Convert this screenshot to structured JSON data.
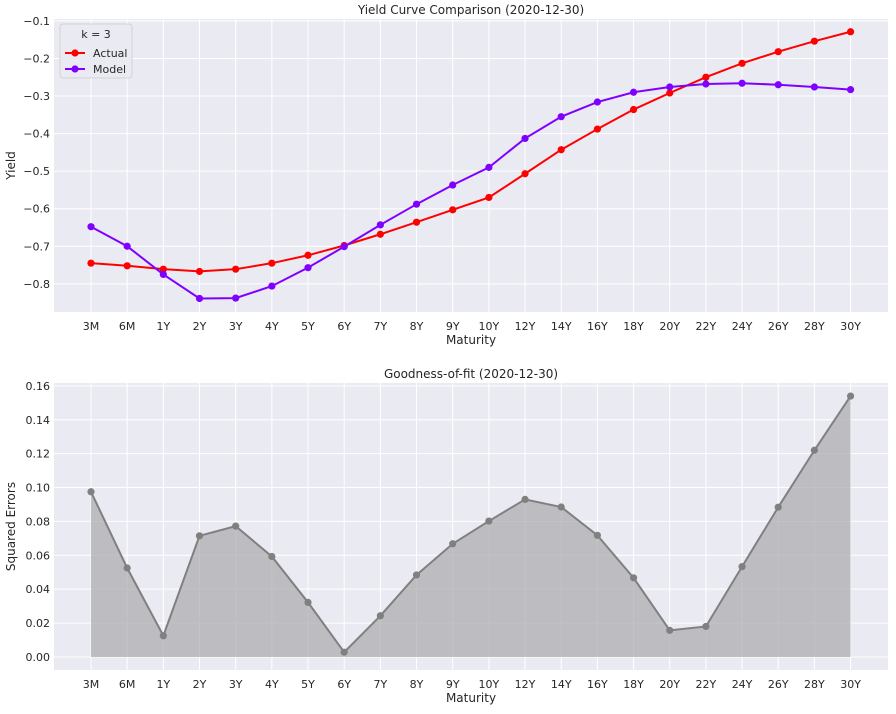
{
  "chart_data": [
    {
      "type": "line",
      "title": "Yield Curve Comparison (2020-12-30)",
      "xlabel": "Maturity",
      "ylabel": "Yield",
      "categories": [
        "3M",
        "6M",
        "1Y",
        "2Y",
        "3Y",
        "4Y",
        "5Y",
        "6Y",
        "7Y",
        "8Y",
        "9Y",
        "10Y",
        "12Y",
        "14Y",
        "16Y",
        "18Y",
        "20Y",
        "22Y",
        "24Y",
        "26Y",
        "28Y",
        "30Y"
      ],
      "ylim": [
        -0.875,
        -0.095
      ],
      "yticks": [
        -0.8,
        -0.7,
        -0.6,
        -0.5,
        -0.4,
        -0.3,
        -0.2,
        -0.1
      ],
      "ytick_labels": [
        "−0.8",
        "−0.7",
        "−0.6",
        "−0.5",
        "−0.4",
        "−0.3",
        "−0.2",
        "−0.1"
      ],
      "grid": true,
      "legend": {
        "title": "k = 3",
        "placement": "top-left"
      },
      "series": [
        {
          "name": "Actual",
          "color": "#ff0000",
          "values": [
            -0.745,
            -0.752,
            -0.761,
            -0.767,
            -0.761,
            -0.745,
            -0.724,
            -0.698,
            -0.668,
            -0.636,
            -0.603,
            -0.57,
            -0.507,
            -0.443,
            -0.388,
            -0.336,
            -0.292,
            -0.25,
            -0.213,
            -0.182,
            -0.154,
            -0.129
          ]
        },
        {
          "name": "Model",
          "color": "#8000ff",
          "values": [
            -0.648,
            -0.7,
            -0.775,
            -0.839,
            -0.838,
            -0.806,
            -0.757,
            -0.701,
            -0.643,
            -0.588,
            -0.537,
            -0.49,
            -0.413,
            -0.355,
            -0.316,
            -0.29,
            -0.276,
            -0.268,
            -0.266,
            -0.27,
            -0.276,
            -0.283
          ]
        }
      ]
    },
    {
      "type": "area",
      "title": "Goodness-of-fit (2020-12-30)",
      "xlabel": "Maturity",
      "ylabel": "Squared Errors",
      "categories": [
        "3M",
        "6M",
        "1Y",
        "2Y",
        "3Y",
        "4Y",
        "5Y",
        "6Y",
        "7Y",
        "8Y",
        "9Y",
        "10Y",
        "12Y",
        "14Y",
        "16Y",
        "18Y",
        "20Y",
        "22Y",
        "24Y",
        "26Y",
        "28Y",
        "30Y"
      ],
      "ylim": [
        -0.0077,
        0.1617
      ],
      "yticks": [
        0.0,
        0.02,
        0.04,
        0.06,
        0.08,
        0.1,
        0.12,
        0.14,
        0.16
      ],
      "ytick_labels": [
        "0.00",
        "0.02",
        "0.04",
        "0.06",
        "0.08",
        "0.10",
        "0.12",
        "0.14",
        "0.16"
      ],
      "grid": true,
      "series": [
        {
          "color": "#808080",
          "fill": "#a9a8ab",
          "values": [
            0.0975,
            0.0525,
            0.0125,
            0.0715,
            0.0772,
            0.0593,
            0.0322,
            0.0028,
            0.0243,
            0.0484,
            0.0668,
            0.0802,
            0.093,
            0.0885,
            0.0718,
            0.0467,
            0.0157,
            0.018,
            0.0533,
            0.0884,
            0.122,
            0.154
          ]
        }
      ]
    }
  ]
}
